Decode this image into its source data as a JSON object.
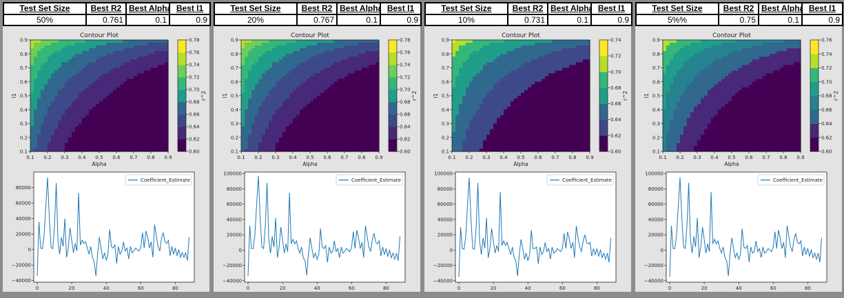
{
  "summary_header": {
    "test_set_size": "Test Set Size",
    "best_r2": "Best R2",
    "best_alpha": "Best Alpha",
    "best_l1": "Best l1"
  },
  "panels": [
    {
      "test_set_size": "50%",
      "best_r2": "0.761",
      "best_alpha": "0.1",
      "best_l1": "0.9"
    },
    {
      "test_set_size": "20%",
      "best_r2": "0.767",
      "best_alpha": "0.1",
      "best_l1": "0.9"
    },
    {
      "test_set_size": "10%",
      "best_r2": "0.731",
      "best_alpha": "0.1",
      "best_l1": "0.9"
    },
    {
      "test_set_size": "5%%",
      "best_r2": "0.75",
      "best_alpha": "0.1",
      "best_l1": "0.9"
    }
  ],
  "colors": {
    "viridis": [
      "#440154",
      "#482878",
      "#3e4989",
      "#31688e",
      "#26828e",
      "#1f9e89",
      "#35b779",
      "#6ece58",
      "#b5de2b",
      "#fde725"
    ],
    "line": "#1f77b4"
  },
  "chart_data": [
    {
      "type": "contour",
      "title": "Contour Plot",
      "xlabel": "Alpha",
      "ylabel": "l1",
      "x_ticks": [
        "0.1",
        "0.2",
        "0.3",
        "0.4",
        "0.5",
        "0.6",
        "0.7",
        "0.8",
        "0.9"
      ],
      "y_ticks": [
        "0.1",
        "0.2",
        "0.3",
        "0.4",
        "0.5",
        "0.6",
        "0.7",
        "0.8",
        "0.9"
      ],
      "xlim": [
        0.1,
        0.9
      ],
      "ylim": [
        0.1,
        0.9
      ],
      "colorbar_label": "r^2",
      "levels": [
        0.6,
        0.62,
        0.64,
        0.66,
        0.68,
        0.7,
        0.72,
        0.74,
        0.76,
        0.78
      ],
      "colorbar_ticks": [
        "0.60",
        "0.62",
        "0.64",
        "0.66",
        "0.68",
        "0.70",
        "0.72",
        "0.74",
        "0.76",
        "0.78"
      ],
      "surface": {
        "r2_max": 0.78,
        "r2_min": 0.6
      }
    },
    {
      "type": "contour",
      "title": "Contour Plot",
      "xlabel": "Alpha",
      "ylabel": "l1",
      "x_ticks": [
        "0.1",
        "0.2",
        "0.3",
        "0.4",
        "0.5",
        "0.6",
        "0.7",
        "0.8",
        "0.9"
      ],
      "y_ticks": [
        "0.1",
        "0.2",
        "0.3",
        "0.4",
        "0.5",
        "0.6",
        "0.7",
        "0.8",
        "0.9"
      ],
      "xlim": [
        0.1,
        0.9
      ],
      "ylim": [
        0.1,
        0.9
      ],
      "colorbar_label": "r^2",
      "levels": [
        0.6,
        0.62,
        0.64,
        0.66,
        0.68,
        0.7,
        0.72,
        0.74,
        0.76,
        0.78
      ],
      "colorbar_ticks": [
        "0.60",
        "0.62",
        "0.64",
        "0.66",
        "0.68",
        "0.70",
        "0.72",
        "0.74",
        "0.76",
        "0.78"
      ],
      "surface": {
        "r2_max": 0.78,
        "r2_min": 0.6
      }
    },
    {
      "type": "contour",
      "title": "Contour Plot",
      "xlabel": "Alpha",
      "ylabel": "l1",
      "x_ticks": [
        "0.1",
        "0.2",
        "0.3",
        "0.4",
        "0.5",
        "0.6",
        "0.7",
        "0.8",
        "0.9"
      ],
      "y_ticks": [
        "0.1",
        "0.2",
        "0.3",
        "0.4",
        "0.5",
        "0.6",
        "0.7",
        "0.8",
        "0.9"
      ],
      "xlim": [
        0.1,
        0.9
      ],
      "ylim": [
        0.1,
        0.9
      ],
      "colorbar_label": "r^2",
      "levels": [
        0.6,
        0.62,
        0.64,
        0.66,
        0.68,
        0.7,
        0.72,
        0.74
      ],
      "colorbar_ticks": [
        "0.60",
        "0.62",
        "0.64",
        "0.66",
        "0.68",
        "0.70",
        "0.72",
        "0.74"
      ],
      "surface": {
        "r2_max": 0.74,
        "r2_min": 0.6
      }
    },
    {
      "type": "contour",
      "title": "Contour Plot",
      "xlabel": "Alpha",
      "ylabel": "l1",
      "x_ticks": [
        "0.1",
        "0.2",
        "0.3",
        "0.4",
        "0.5",
        "0.6",
        "0.7",
        "0.8",
        "0.9"
      ],
      "y_ticks": [
        "0.1",
        "0.2",
        "0.3",
        "0.4",
        "0.5",
        "0.6",
        "0.7",
        "0.8",
        "0.9"
      ],
      "xlim": [
        0.1,
        0.9
      ],
      "ylim": [
        0.1,
        0.9
      ],
      "colorbar_label": "r^2",
      "levels": [
        0.6,
        0.62,
        0.64,
        0.66,
        0.68,
        0.7,
        0.72,
        0.74,
        0.76
      ],
      "colorbar_ticks": [
        "0.60",
        "0.62",
        "0.64",
        "0.66",
        "0.68",
        "0.70",
        "0.72",
        "0.74",
        "0.76"
      ],
      "surface": {
        "r2_max": 0.76,
        "r2_min": 0.6
      }
    },
    {
      "type": "line",
      "legend": [
        "Coefficient_Estimate"
      ],
      "legend_position": "top-right",
      "x_ticks": [
        "0",
        "20",
        "40",
        "60",
        "80"
      ],
      "xlim": [
        -2,
        91
      ],
      "y_ticks": [
        "−40000",
        "−20000",
        "0",
        "20000",
        "40000",
        "60000",
        "80000"
      ],
      "ylim": [
        -42000,
        100000
      ],
      "series": [
        {
          "name": "Coefficient_Estimate",
          "values": [
            -34000,
            36000,
            2000,
            1000,
            18000,
            56000,
            93000,
            42000,
            3000,
            1000,
            30000,
            86000,
            12000,
            -6000,
            16000,
            4000,
            40000,
            -10000,
            2000,
            28000,
            12000,
            -4000,
            8000,
            -2000,
            73000,
            6000,
            12000,
            8000,
            10000,
            2000,
            -6000,
            4000,
            -10000,
            -16000,
            -34000,
            -6000,
            16000,
            2000,
            -12000,
            -4000,
            -14000,
            -6000,
            26000,
            4000,
            2000,
            6000,
            -18000,
            4000,
            -6000,
            -2000,
            10000,
            -2000,
            2000,
            -12000,
            4000,
            -4000,
            -2000,
            2000,
            0,
            -2000,
            2000,
            22000,
            2000,
            24000,
            16000,
            2000,
            10000,
            -10000,
            32000,
            18000,
            4000,
            -2000,
            14000,
            22000,
            10000,
            8000,
            12000,
            -8000,
            4000,
            -6000,
            2000,
            -8000,
            0,
            -10000,
            -4000,
            -10000,
            -4000,
            -14000,
            16000
          ]
        }
      ]
    },
    {
      "type": "line",
      "legend": [
        "Coefficient_Estimate"
      ],
      "legend_position": "top-right",
      "x_ticks": [
        "0",
        "20",
        "40",
        "60",
        "80"
      ],
      "xlim": [
        -2,
        91
      ],
      "y_ticks": [
        "−40000",
        "−20000",
        "0",
        "20000",
        "40000",
        "60000",
        "80000",
        "100000"
      ],
      "ylim": [
        -42000,
        102000
      ],
      "series": [
        {
          "name": "Coefficient_Estimate",
          "values": [
            -34000,
            32000,
            2000,
            2000,
            20000,
            60000,
            97000,
            44000,
            4000,
            2000,
            32000,
            88000,
            14000,
            -4000,
            18000,
            4000,
            42000,
            -10000,
            4000,
            30000,
            14000,
            -4000,
            8000,
            -2000,
            75000,
            8000,
            14000,
            8000,
            12000,
            2000,
            -4000,
            4000,
            -10000,
            -14000,
            -33000,
            -4000,
            16000,
            2000,
            -10000,
            -4000,
            -12000,
            -6000,
            28000,
            4000,
            2000,
            6000,
            -16000,
            4000,
            -4000,
            -2000,
            12000,
            -2000,
            2000,
            -10000,
            4000,
            -4000,
            -2000,
            2000,
            0,
            -2000,
            4000,
            24000,
            2000,
            26000,
            16000,
            2000,
            10000,
            -10000,
            32000,
            18000,
            4000,
            -2000,
            14000,
            22000,
            10000,
            8000,
            12000,
            -8000,
            4000,
            -6000,
            2000,
            -8000,
            0,
            -10000,
            -4000,
            -12000,
            -4000,
            -14000,
            18000
          ]
        }
      ]
    },
    {
      "type": "line",
      "legend": [
        "Coefficient_Estimate"
      ],
      "legend_position": "top-right",
      "x_ticks": [
        "0",
        "20",
        "40",
        "60",
        "80"
      ],
      "xlim": [
        -2,
        91
      ],
      "y_ticks": [
        "−40000",
        "−20000",
        "0",
        "20000",
        "40000",
        "60000",
        "80000",
        "100000"
      ],
      "ylim": [
        -42000,
        102000
      ],
      "series": [
        {
          "name": "Coefficient_Estimate",
          "values": [
            -35000,
            30000,
            2000,
            1000,
            18000,
            58000,
            95000,
            42000,
            2000,
            1000,
            30000,
            88000,
            12000,
            -6000,
            16000,
            2000,
            42000,
            -10000,
            2000,
            28000,
            12000,
            -4000,
            6000,
            -2000,
            76000,
            6000,
            12000,
            6000,
            10000,
            2000,
            -6000,
            4000,
            -10000,
            -14000,
            -34000,
            -6000,
            14000,
            2000,
            -12000,
            -4000,
            -14000,
            -6000,
            26000,
            2000,
            2000,
            4000,
            -18000,
            4000,
            -6000,
            -2000,
            10000,
            -2000,
            2000,
            -12000,
            4000,
            -4000,
            -2000,
            2000,
            0,
            -2000,
            2000,
            22000,
            2000,
            24000,
            14000,
            2000,
            10000,
            -10000,
            32000,
            16000,
            4000,
            -2000,
            12000,
            20000,
            10000,
            8000,
            10000,
            -8000,
            2000,
            -6000,
            2000,
            -8000,
            0,
            -10000,
            -4000,
            -12000,
            -4000,
            -16000,
            16000
          ]
        }
      ]
    },
    {
      "type": "line",
      "legend": [
        "Coefficient_Estimate"
      ],
      "legend_position": "top-right",
      "x_ticks": [
        "0",
        "20",
        "40",
        "60",
        "80"
      ],
      "xlim": [
        -2,
        91
      ],
      "y_ticks": [
        "−40000",
        "−20000",
        "0",
        "20000",
        "40000",
        "60000",
        "80000",
        "100000"
      ],
      "ylim": [
        -42000,
        102000
      ],
      "series": [
        {
          "name": "Coefficient_Estimate",
          "values": [
            -35000,
            32000,
            2000,
            2000,
            20000,
            58000,
            95000,
            44000,
            4000,
            2000,
            32000,
            88000,
            14000,
            -4000,
            18000,
            4000,
            42000,
            -10000,
            4000,
            30000,
            14000,
            -4000,
            8000,
            -2000,
            76000,
            8000,
            14000,
            8000,
            12000,
            2000,
            -4000,
            4000,
            -10000,
            -14000,
            -34000,
            -4000,
            16000,
            2000,
            -10000,
            -4000,
            -12000,
            -6000,
            28000,
            4000,
            2000,
            6000,
            -16000,
            4000,
            -4000,
            -2000,
            12000,
            -2000,
            2000,
            -10000,
            4000,
            -4000,
            -2000,
            2000,
            0,
            -2000,
            4000,
            24000,
            2000,
            26000,
            16000,
            2000,
            10000,
            -10000,
            32000,
            18000,
            4000,
            -2000,
            14000,
            22000,
            10000,
            8000,
            12000,
            -8000,
            4000,
            -6000,
            2000,
            -8000,
            0,
            -10000,
            -4000,
            -12000,
            -4000,
            -16000,
            16000
          ]
        }
      ]
    }
  ]
}
